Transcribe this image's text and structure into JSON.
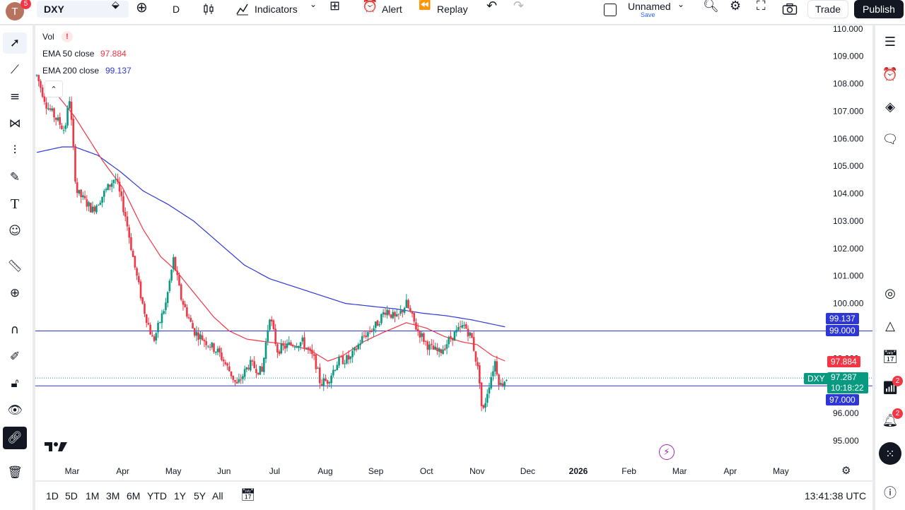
{
  "header": {
    "avatar_letter": "T",
    "avatar_badge": "5",
    "symbol": "DXY",
    "interval": "D",
    "indicators_label": "Indicators",
    "alert_label": "Alert",
    "replay_label": "Replay",
    "layout_name": "Unnamed",
    "layout_save": "Save",
    "trade_label": "Trade",
    "publish_label": "Publish"
  },
  "legend": {
    "vol_label": "Vol",
    "ema50_label": "EMA 50 close",
    "ema50_value": "97.884",
    "ema200_label": "EMA 200 close",
    "ema200_value": "99.137"
  },
  "colors": {
    "up": "#089981",
    "down": "#f23645",
    "ema50": "#f23645",
    "ema200": "#2c37d6",
    "hline": "#2c37d6",
    "accent": "#2962ff"
  },
  "price_badges": {
    "ema200": "99.137",
    "hline_high": "99.000",
    "ema50": "97.884",
    "symbol": "DXY",
    "last_price": "97.287",
    "countdown": "10:18:22",
    "hline_low": "97.000"
  },
  "bottom": {
    "ranges": [
      "1D",
      "5D",
      "1M",
      "3M",
      "6M",
      "YTD",
      "1Y",
      "5Y",
      "All"
    ],
    "clock": "13:41:38 UTC"
  },
  "rightbar": {
    "notifications_count": "2",
    "alerts_count": "2"
  },
  "chart_data": {
    "type": "candlestick",
    "symbol": "DXY",
    "interval": "1D",
    "y_axis_ticks": [
      "110.000",
      "109.000",
      "108.000",
      "107.000",
      "106.000",
      "105.000",
      "104.000",
      "103.000",
      "102.000",
      "101.000",
      "100.000",
      "99.000",
      "98.000",
      "97.000",
      "96.000",
      "95.000"
    ],
    "ylim": [
      94.6,
      110.4
    ],
    "x_axis_ticks": [
      "Mar",
      "Apr",
      "May",
      "Jun",
      "Jul",
      "Aug",
      "Sep",
      "Oct",
      "Nov",
      "Dec",
      "2026",
      "Feb",
      "Mar",
      "Apr",
      "May"
    ],
    "horizontal_lines": [
      99.0,
      97.0
    ],
    "last_price": 97.287,
    "price_path": [
      {
        "m": 0.0,
        "p": 108.3
      },
      {
        "m": 0.2,
        "p": 107.2
      },
      {
        "m": 0.55,
        "p": 106.3
      },
      {
        "m": 0.65,
        "p": 107.5
      },
      {
        "m": 0.78,
        "p": 104.1
      },
      {
        "m": 1.1,
        "p": 103.4
      },
      {
        "m": 1.4,
        "p": 104.2
      },
      {
        "m": 1.55,
        "p": 104.6
      },
      {
        "m": 1.75,
        "p": 103.2
      },
      {
        "m": 1.95,
        "p": 101.2
      },
      {
        "m": 2.1,
        "p": 99.9
      },
      {
        "m": 2.3,
        "p": 98.6
      },
      {
        "m": 2.55,
        "p": 100.0
      },
      {
        "m": 2.7,
        "p": 101.6
      },
      {
        "m": 2.85,
        "p": 100.2
      },
      {
        "m": 3.1,
        "p": 99.0
      },
      {
        "m": 3.35,
        "p": 98.6
      },
      {
        "m": 3.6,
        "p": 98.2
      },
      {
        "m": 3.85,
        "p": 97.4
      },
      {
        "m": 3.95,
        "p": 97.0
      },
      {
        "m": 4.2,
        "p": 97.8
      },
      {
        "m": 4.45,
        "p": 97.5
      },
      {
        "m": 4.6,
        "p": 99.6
      },
      {
        "m": 4.75,
        "p": 98.3
      },
      {
        "m": 5.0,
        "p": 98.5
      },
      {
        "m": 5.25,
        "p": 98.6
      },
      {
        "m": 5.5,
        "p": 97.9
      },
      {
        "m": 5.6,
        "p": 97.1
      },
      {
        "m": 5.75,
        "p": 97.2
      },
      {
        "m": 5.95,
        "p": 97.9
      },
      {
        "m": 6.2,
        "p": 98.0
      },
      {
        "m": 6.45,
        "p": 98.8
      },
      {
        "m": 6.7,
        "p": 99.2
      },
      {
        "m": 6.9,
        "p": 99.8
      },
      {
        "m": 7.1,
        "p": 99.4
      },
      {
        "m": 7.3,
        "p": 100.0
      },
      {
        "m": 7.5,
        "p": 99.1
      },
      {
        "m": 7.75,
        "p": 98.4
      },
      {
        "m": 7.95,
        "p": 98.2
      },
      {
        "m": 8.2,
        "p": 98.8
      },
      {
        "m": 8.45,
        "p": 99.2
      },
      {
        "m": 8.6,
        "p": 98.7
      },
      {
        "m": 8.75,
        "p": 97.2
      },
      {
        "m": 8.8,
        "p": 95.9
      },
      {
        "m": 8.9,
        "p": 96.8
      },
      {
        "m": 9.05,
        "p": 97.9
      },
      {
        "m": 9.15,
        "p": 97.0
      },
      {
        "m": 9.28,
        "p": 97.29
      }
    ],
    "ema50_path": [
      {
        "m": 0.4,
        "p": 107.6
      },
      {
        "m": 0.75,
        "p": 106.8
      },
      {
        "m": 1.3,
        "p": 105.2
      },
      {
        "m": 1.7,
        "p": 104.2
      },
      {
        "m": 2.1,
        "p": 102.7
      },
      {
        "m": 2.45,
        "p": 101.7
      },
      {
        "m": 2.75,
        "p": 101.2
      },
      {
        "m": 3.1,
        "p": 100.4
      },
      {
        "m": 3.5,
        "p": 99.5
      },
      {
        "m": 3.8,
        "p": 99.0
      },
      {
        "m": 4.15,
        "p": 98.7
      },
      {
        "m": 4.55,
        "p": 98.6
      },
      {
        "m": 5.0,
        "p": 98.5
      },
      {
        "m": 5.4,
        "p": 98.3
      },
      {
        "m": 5.75,
        "p": 97.9
      },
      {
        "m": 6.05,
        "p": 98.1
      },
      {
        "m": 6.45,
        "p": 98.6
      },
      {
        "m": 6.85,
        "p": 98.95
      },
      {
        "m": 7.3,
        "p": 99.3
      },
      {
        "m": 7.7,
        "p": 99.1
      },
      {
        "m": 8.05,
        "p": 98.8
      },
      {
        "m": 8.4,
        "p": 98.6
      },
      {
        "m": 8.7,
        "p": 98.5
      },
      {
        "m": 9.0,
        "p": 98.1
      },
      {
        "m": 9.28,
        "p": 97.884
      }
    ],
    "ema200_path": [
      {
        "m": 0.0,
        "p": 105.5
      },
      {
        "m": 0.5,
        "p": 105.7
      },
      {
        "m": 0.75,
        "p": 105.7
      },
      {
        "m": 1.2,
        "p": 105.4
      },
      {
        "m": 1.65,
        "p": 104.8
      },
      {
        "m": 2.1,
        "p": 104.1
      },
      {
        "m": 2.6,
        "p": 103.6
      },
      {
        "m": 3.1,
        "p": 103.0
      },
      {
        "m": 3.6,
        "p": 102.2
      },
      {
        "m": 4.1,
        "p": 101.4
      },
      {
        "m": 4.6,
        "p": 100.9
      },
      {
        "m": 5.1,
        "p": 100.6
      },
      {
        "m": 5.6,
        "p": 100.3
      },
      {
        "m": 6.1,
        "p": 100.0
      },
      {
        "m": 6.6,
        "p": 99.9
      },
      {
        "m": 7.1,
        "p": 99.8
      },
      {
        "m": 7.6,
        "p": 99.65
      },
      {
        "m": 8.1,
        "p": 99.55
      },
      {
        "m": 8.6,
        "p": 99.4
      },
      {
        "m": 9.28,
        "p": 99.137
      }
    ]
  }
}
